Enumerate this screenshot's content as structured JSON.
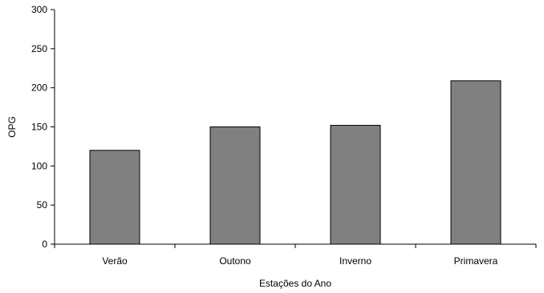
{
  "chart_data": {
    "type": "bar",
    "categories": [
      "Verão",
      "Outono",
      "Inverno",
      "Primavera"
    ],
    "values": [
      120,
      150,
      152,
      209
    ],
    "xlabel": "Estações do Ano",
    "ylabel": "OPG",
    "ylim": [
      0,
      300
    ],
    "yticks": [
      "0",
      "50",
      "100",
      "150",
      "200",
      "250",
      "300"
    ],
    "grid": false,
    "legend": "none",
    "bar_color": "#808080",
    "bar_edge_color": "#000000"
  }
}
